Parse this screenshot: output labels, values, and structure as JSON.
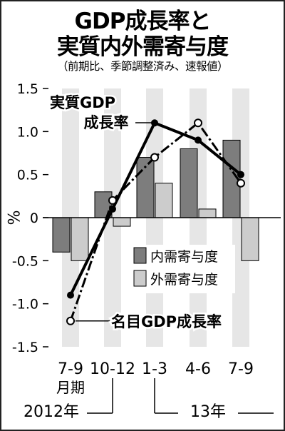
{
  "title_line1": "GDP成長率と",
  "title_line2": "実質内外需寄与度",
  "subtitle": "（前期比、季節調整済み、速報値）",
  "ylabel": "%",
  "colors": {
    "bg_band": "#e6e6e6",
    "domestic_bar": "#7d7d7d",
    "external_bar": "#cccccc",
    "line": "#000000",
    "marker_fill_nominal": "#ffffff"
  },
  "chart_data": {
    "type": "bar",
    "categories": [
      "7-9",
      "10-12",
      "1-3",
      "4-6",
      "7-9"
    ],
    "ylim": [
      -1.5,
      1.5
    ],
    "yticks": [
      "1.5",
      "1.0",
      "0.5",
      "0",
      "-0.5",
      "-1.0",
      "-1.5"
    ],
    "series": [
      {
        "name": "内需寄与度",
        "kind": "bar",
        "values": [
          -0.4,
          0.3,
          0.7,
          0.8,
          0.9
        ]
      },
      {
        "name": "外需寄与度",
        "kind": "bar",
        "values": [
          -0.5,
          -0.1,
          0.4,
          0.1,
          -0.5
        ]
      },
      {
        "name": "実質GDP成長率",
        "kind": "line",
        "values": [
          -0.9,
          0.1,
          1.1,
          0.9,
          0.5
        ]
      },
      {
        "name": "名目GDP成長率",
        "kind": "line",
        "values": [
          -1.2,
          0.2,
          0.7,
          1.1,
          0.4
        ]
      }
    ],
    "annotations": {
      "real": [
        "実質GDP",
        "成長率"
      ],
      "nominal": "名目GDP成長率"
    },
    "x_sub": {
      "period_label": "月期",
      "year_2012": "2012年",
      "year_13": "13年"
    }
  }
}
